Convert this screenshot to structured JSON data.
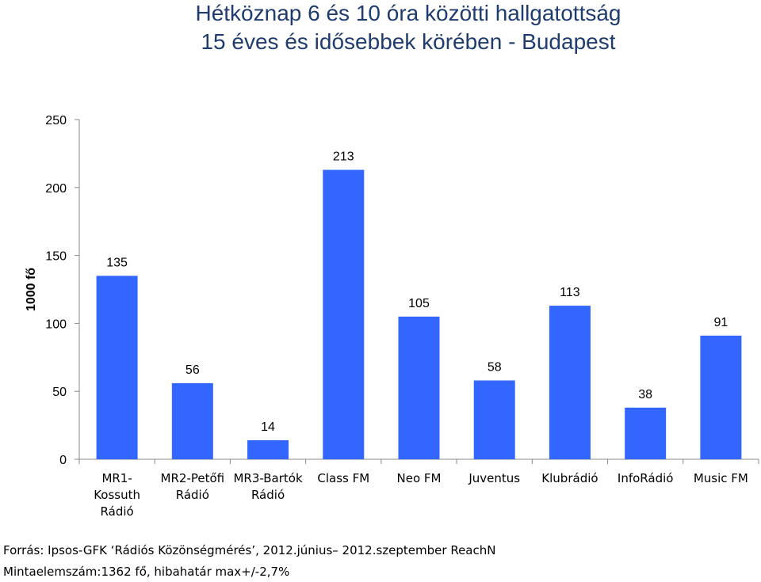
{
  "chart_data": {
    "type": "bar",
    "title": [
      "Hétköznap 6 és 10 óra közötti hallgatottság",
      "15 éves és idősebbek körében - Budapest"
    ],
    "ylabel": "1000 fő",
    "xlabel": "",
    "ylim": [
      0,
      250
    ],
    "yticks": [
      0,
      50,
      100,
      150,
      200,
      250
    ],
    "grid": false,
    "legend": "none",
    "bar_color": "#3366ff",
    "categories": [
      [
        "MR1-",
        "Kossuth",
        "Rádió"
      ],
      [
        "MR2-Petőfi",
        "Rádió"
      ],
      [
        "MR3-Bartók",
        "Rádió"
      ],
      [
        "Class FM"
      ],
      [
        "Neo FM"
      ],
      [
        "Juventus"
      ],
      [
        "Klubrádió"
      ],
      [
        "InfoRádió"
      ],
      [
        "Music FM"
      ]
    ],
    "values": [
      135,
      56,
      14,
      213,
      105,
      58,
      113,
      38,
      91
    ],
    "data_labels": [
      "135",
      "56",
      "14",
      "213",
      "105",
      "58",
      "113",
      "38",
      "91"
    ]
  },
  "footer": {
    "source": "Forrás: Ipsos-GFK ‘Rádiós Közönségmérés’, 2012.június– 2012.szeptember ReachN",
    "sample": "Mintaelemszám:1362 fő, hibahatár max+/-2,7%"
  }
}
